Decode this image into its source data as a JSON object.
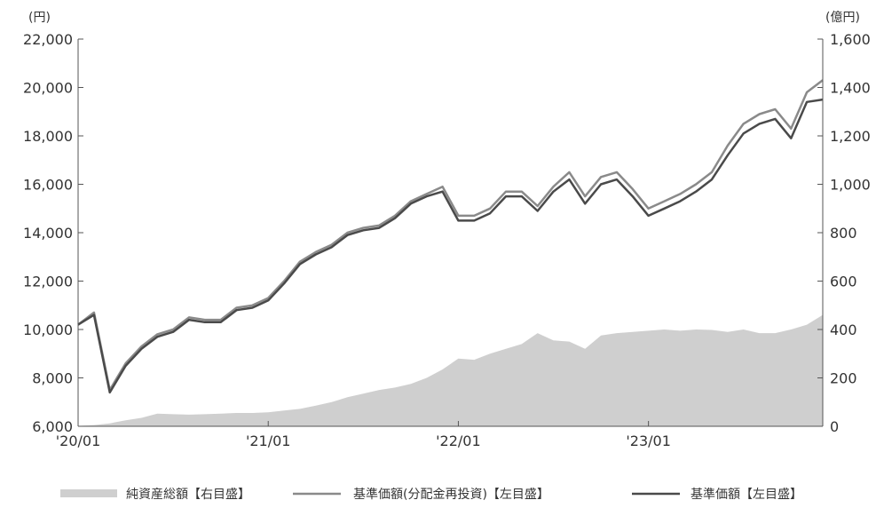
{
  "chart_data": {
    "type": "line",
    "left_unit": "(円)",
    "right_unit": "(億円)",
    "y_left": {
      "min": 6000,
      "max": 22000,
      "ticks": [
        "6,000",
        "8,000",
        "10,000",
        "12,000",
        "14,000",
        "16,000",
        "18,000",
        "20,000",
        "22,000"
      ],
      "tick_values": [
        6000,
        8000,
        10000,
        12000,
        14000,
        16000,
        18000,
        20000,
        22000
      ]
    },
    "y_right": {
      "min": 0,
      "max": 1600,
      "ticks": [
        "0",
        "200",
        "400",
        "600",
        "800",
        "1,000",
        "1,200",
        "1,400",
        "1,600"
      ],
      "tick_values": [
        0,
        200,
        400,
        600,
        800,
        1000,
        1200,
        1400,
        1600
      ]
    },
    "x_ticks": [
      {
        "label": "'20/01",
        "date": "2020-01"
      },
      {
        "label": "'21/01",
        "date": "2021-01"
      },
      {
        "label": "'22/01",
        "date": "2022-01"
      },
      {
        "label": "'23/01",
        "date": "2023-01"
      }
    ],
    "x_range": [
      "2020-01",
      "2023-12"
    ],
    "grid": false,
    "legend_position": "bottom",
    "colors": {
      "area": "#cfcfcf",
      "reinvested": "#8a8a8a",
      "nav": "#4a4a4a",
      "axis": "#555555"
    },
    "series": [
      {
        "name": "純資産総額【右目盛】",
        "kind": "area",
        "axis": "right",
        "points": [
          [
            "2020-01",
            2
          ],
          [
            "2020-02",
            5
          ],
          [
            "2020-03",
            12
          ],
          [
            "2020-04",
            25
          ],
          [
            "2020-05",
            35
          ],
          [
            "2020-06",
            52
          ],
          [
            "2020-07",
            50
          ],
          [
            "2020-08",
            48
          ],
          [
            "2020-09",
            50
          ],
          [
            "2020-10",
            52
          ],
          [
            "2020-11",
            55
          ],
          [
            "2020-12",
            55
          ],
          [
            "2021-01",
            58
          ],
          [
            "2021-02",
            65
          ],
          [
            "2021-03",
            72
          ],
          [
            "2021-04",
            85
          ],
          [
            "2021-05",
            100
          ],
          [
            "2021-06",
            120
          ],
          [
            "2021-07",
            135
          ],
          [
            "2021-08",
            150
          ],
          [
            "2021-09",
            160
          ],
          [
            "2021-10",
            175
          ],
          [
            "2021-11",
            200
          ],
          [
            "2021-12",
            235
          ],
          [
            "2022-01",
            280
          ],
          [
            "2022-02",
            275
          ],
          [
            "2022-03",
            300
          ],
          [
            "2022-04",
            320
          ],
          [
            "2022-05",
            340
          ],
          [
            "2022-06",
            385
          ],
          [
            "2022-07",
            355
          ],
          [
            "2022-08",
            350
          ],
          [
            "2022-09",
            320
          ],
          [
            "2022-10",
            375
          ],
          [
            "2022-11",
            385
          ],
          [
            "2022-12",
            390
          ],
          [
            "2023-01",
            395
          ],
          [
            "2023-02",
            400
          ],
          [
            "2023-03",
            395
          ],
          [
            "2023-04",
            400
          ],
          [
            "2023-05",
            398
          ],
          [
            "2023-06",
            390
          ],
          [
            "2023-07",
            400
          ],
          [
            "2023-08",
            385
          ],
          [
            "2023-09",
            385
          ],
          [
            "2023-10",
            400
          ],
          [
            "2023-11",
            420
          ],
          [
            "2023-12",
            460
          ]
        ]
      },
      {
        "name": "基準価額(分配金再投資)【左目盛】",
        "kind": "line",
        "axis": "left",
        "points": [
          [
            "2020-01",
            10200
          ],
          [
            "2020-02",
            10700
          ],
          [
            "2020-03",
            7500
          ],
          [
            "2020-04",
            8600
          ],
          [
            "2020-05",
            9300
          ],
          [
            "2020-06",
            9800
          ],
          [
            "2020-07",
            10000
          ],
          [
            "2020-08",
            10500
          ],
          [
            "2020-09",
            10400
          ],
          [
            "2020-10",
            10400
          ],
          [
            "2020-11",
            10900
          ],
          [
            "2020-12",
            11000
          ],
          [
            "2021-01",
            11300
          ],
          [
            "2021-02",
            12000
          ],
          [
            "2021-03",
            12800
          ],
          [
            "2021-04",
            13200
          ],
          [
            "2021-05",
            13500
          ],
          [
            "2021-06",
            14000
          ],
          [
            "2021-07",
            14200
          ],
          [
            "2021-08",
            14300
          ],
          [
            "2021-09",
            14700
          ],
          [
            "2021-10",
            15300
          ],
          [
            "2021-11",
            15600
          ],
          [
            "2021-12",
            15900
          ],
          [
            "2022-01",
            14700
          ],
          [
            "2022-02",
            14700
          ],
          [
            "2022-03",
            15000
          ],
          [
            "2022-04",
            15700
          ],
          [
            "2022-05",
            15700
          ],
          [
            "2022-06",
            15100
          ],
          [
            "2022-07",
            15900
          ],
          [
            "2022-08",
            16500
          ],
          [
            "2022-09",
            15500
          ],
          [
            "2022-10",
            16300
          ],
          [
            "2022-11",
            16500
          ],
          [
            "2022-12",
            15800
          ],
          [
            "2023-01",
            15000
          ],
          [
            "2023-02",
            15300
          ],
          [
            "2023-03",
            15600
          ],
          [
            "2023-04",
            16000
          ],
          [
            "2023-05",
            16500
          ],
          [
            "2023-06",
            17600
          ],
          [
            "2023-07",
            18500
          ],
          [
            "2023-08",
            18900
          ],
          [
            "2023-09",
            19100
          ],
          [
            "2023-10",
            18300
          ],
          [
            "2023-11",
            19800
          ],
          [
            "2023-12",
            20300
          ]
        ]
      },
      {
        "name": "基準価額【左目盛】",
        "kind": "line",
        "axis": "left",
        "points": [
          [
            "2020-01",
            10200
          ],
          [
            "2020-02",
            10600
          ],
          [
            "2020-03",
            7400
          ],
          [
            "2020-04",
            8500
          ],
          [
            "2020-05",
            9200
          ],
          [
            "2020-06",
            9700
          ],
          [
            "2020-07",
            9900
          ],
          [
            "2020-08",
            10400
          ],
          [
            "2020-09",
            10300
          ],
          [
            "2020-10",
            10300
          ],
          [
            "2020-11",
            10800
          ],
          [
            "2020-12",
            10900
          ],
          [
            "2021-01",
            11200
          ],
          [
            "2021-02",
            11900
          ],
          [
            "2021-03",
            12700
          ],
          [
            "2021-04",
            13100
          ],
          [
            "2021-05",
            13400
          ],
          [
            "2021-06",
            13900
          ],
          [
            "2021-07",
            14100
          ],
          [
            "2021-08",
            14200
          ],
          [
            "2021-09",
            14600
          ],
          [
            "2021-10",
            15200
          ],
          [
            "2021-11",
            15500
          ],
          [
            "2021-12",
            15700
          ],
          [
            "2022-01",
            14500
          ],
          [
            "2022-02",
            14500
          ],
          [
            "2022-03",
            14800
          ],
          [
            "2022-04",
            15500
          ],
          [
            "2022-05",
            15500
          ],
          [
            "2022-06",
            14900
          ],
          [
            "2022-07",
            15700
          ],
          [
            "2022-08",
            16200
          ],
          [
            "2022-09",
            15200
          ],
          [
            "2022-10",
            16000
          ],
          [
            "2022-11",
            16200
          ],
          [
            "2022-12",
            15500
          ],
          [
            "2023-01",
            14700
          ],
          [
            "2023-02",
            15000
          ],
          [
            "2023-03",
            15300
          ],
          [
            "2023-04",
            15700
          ],
          [
            "2023-05",
            16200
          ],
          [
            "2023-06",
            17200
          ],
          [
            "2023-07",
            18100
          ],
          [
            "2023-08",
            18500
          ],
          [
            "2023-09",
            18700
          ],
          [
            "2023-10",
            17900
          ],
          [
            "2023-11",
            19400
          ],
          [
            "2023-12",
            19500
          ]
        ]
      }
    ]
  }
}
